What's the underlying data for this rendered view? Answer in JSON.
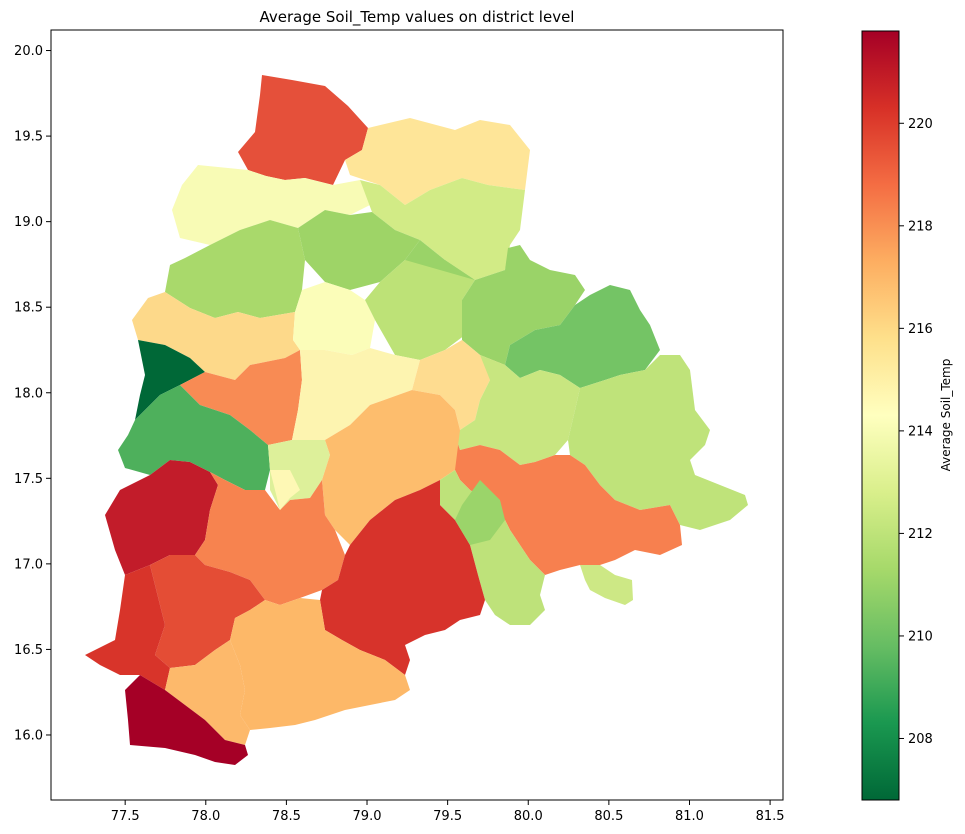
{
  "chart_data": {
    "type": "choropleth",
    "title": "Average Soil_Temp values on district level",
    "x_ticks": [
      "77.5",
      "78.0",
      "78.5",
      "79.0",
      "79.5",
      "80.0",
      "80.5",
      "81.0",
      "81.5"
    ],
    "y_ticks": [
      "16.0",
      "16.5",
      "17.0",
      "17.5",
      "18.0",
      "18.5",
      "19.0",
      "19.5",
      "20.0"
    ],
    "xlim": [
      77.04,
      81.58
    ],
    "ylim": [
      15.62,
      20.12
    ],
    "colorbar": {
      "label": "Average Soil_Temp",
      "range": [
        206.8,
        221.8
      ],
      "ticks": [
        "208",
        "210",
        "212",
        "214",
        "216",
        "218",
        "220"
      ],
      "colormap": "RdYlGn_r",
      "stops": [
        "#006837",
        "#1a9850",
        "#66bd63",
        "#a6d96a",
        "#d9ef8b",
        "#ffffbf",
        "#fee08b",
        "#fdae61",
        "#f46d43",
        "#d73027",
        "#a50026"
      ]
    },
    "districts": [
      {
        "value": 219.5,
        "color": "#e5503a"
      },
      {
        "value": 215.4,
        "color": "#fee598"
      },
      {
        "value": 214.2,
        "color": "#f8fbb5"
      },
      {
        "value": 212.7,
        "color": "#d2eb86"
      },
      {
        "value": 211.3,
        "color": "#a9d96b"
      },
      {
        "value": 211.2,
        "color": "#9ed467"
      },
      {
        "value": 215.8,
        "color": "#fdd98a"
      },
      {
        "value": 214.1,
        "color": "#fbfdb9"
      },
      {
        "value": 212.0,
        "color": "#bde277"
      },
      {
        "value": 211.0,
        "color": "#9ad368"
      },
      {
        "value": 209.8,
        "color": "#74c465"
      },
      {
        "value": 206.8,
        "color": "#006837"
      },
      {
        "value": 218.3,
        "color": "#f88b54"
      },
      {
        "value": 214.6,
        "color": "#fdf4b0"
      },
      {
        "value": 215.9,
        "color": "#fedc90"
      },
      {
        "value": 212.3,
        "color": "#c8e680"
      },
      {
        "value": 212.1,
        "color": "#bfe37a"
      },
      {
        "value": 209.2,
        "color": "#4eb05c"
      },
      {
        "value": 218.6,
        "color": "#f7804f"
      },
      {
        "value": 213.0,
        "color": "#ddf09a"
      },
      {
        "value": 217.2,
        "color": "#fdbd6d"
      },
      {
        "value": 212.0,
        "color": "#bee27a"
      },
      {
        "value": 221.0,
        "color": "#c21c2a"
      },
      {
        "value": 218.5,
        "color": "#f7834f"
      },
      {
        "value": 214.4,
        "color": "#fef8b5"
      },
      {
        "value": 212.5,
        "color": "#cde885"
      },
      {
        "value": 220.5,
        "color": "#d7332b"
      },
      {
        "value": 219.6,
        "color": "#e44d35"
      },
      {
        "value": 220.3,
        "color": "#d8342a"
      },
      {
        "value": 217.4,
        "color": "#fdb868"
      },
      {
        "value": 217.3,
        "color": "#fdb96b"
      },
      {
        "value": 221.8,
        "color": "#a50026"
      },
      {
        "value": 211.0,
        "color": "#9bd46a"
      }
    ]
  }
}
